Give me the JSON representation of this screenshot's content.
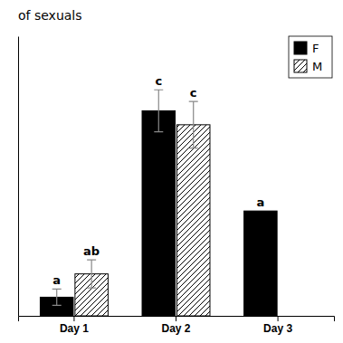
{
  "chart_data": {
    "type": "bar",
    "title": "of sexuals",
    "categories": [
      "Day 1",
      "Day 2",
      "Day 3"
    ],
    "series": [
      {
        "name": "F",
        "color": "#000000",
        "values": [
          8.0,
          88.0,
          45.0
        ],
        "errors": [
          3.5,
          9.0,
          0.0
        ],
        "labels": [
          "a",
          "c",
          "a"
        ]
      },
      {
        "name": "M",
        "color": "#ffffff",
        "values": [
          18.0,
          82.0,
          0.0
        ],
        "errors": [
          6.0,
          10.0,
          0.0
        ],
        "labels": [
          "ab",
          "c",
          null
        ]
      }
    ],
    "ylim": [
      0,
      120
    ],
    "legend": "upper right",
    "tick_labels": "x"
  }
}
